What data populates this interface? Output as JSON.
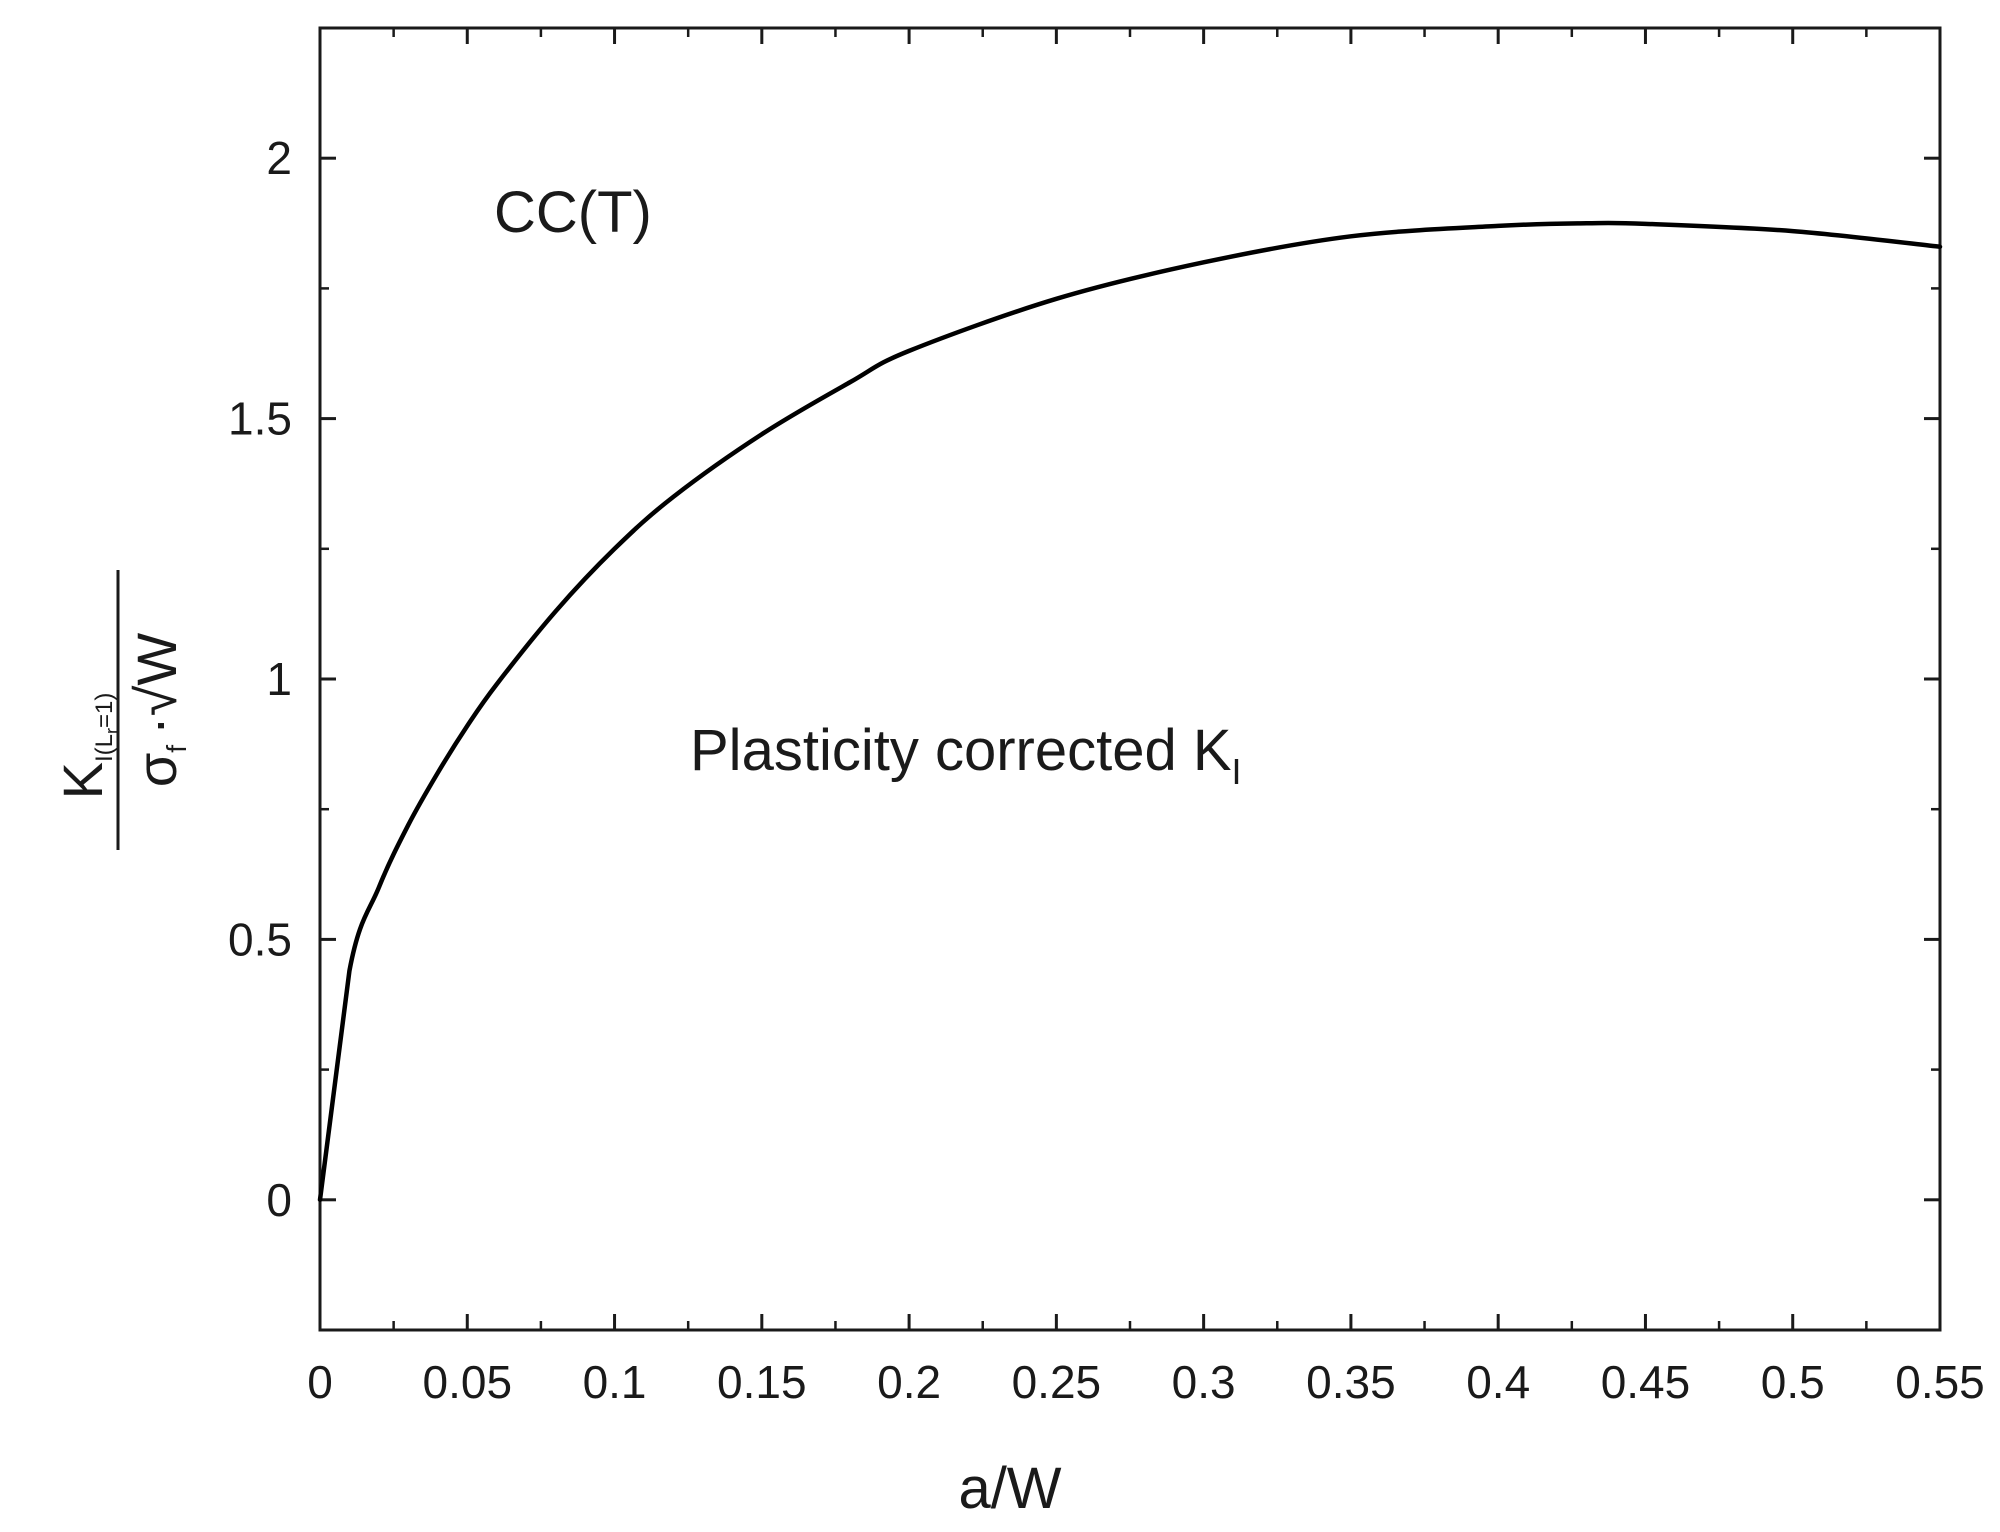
{
  "chart_data": {
    "type": "line",
    "title": "",
    "xlabel": "a/W",
    "ylabel": {
      "numerator_base": "K",
      "numerator_subscript": "I(L",
      "numerator_sub_sub": "r",
      "numerator_sub_tail": "=1)",
      "denominator_sigma": "σ",
      "denominator_sigma_sub": "f",
      "denominator_rest": "·",
      "denominator_root": "√",
      "denominator_var": "W"
    },
    "xlim": [
      0,
      0.55
    ],
    "ylim": [
      -0.25,
      2.25
    ],
    "x_ticks": [
      0,
      0.05,
      0.1,
      0.15,
      0.2,
      0.25,
      0.3,
      0.35,
      0.4,
      0.45,
      0.5,
      0.55
    ],
    "x_tick_labels": [
      "0",
      "0.05",
      "0.1",
      "0.15",
      "0.2",
      "0.25",
      "0.3",
      "0.35",
      "0.4",
      "0.45",
      "0.5",
      "0.55"
    ],
    "y_ticks": [
      0,
      0.5,
      1,
      1.5,
      2
    ],
    "y_tick_labels": [
      "0",
      "0.5",
      "1",
      "1.5",
      "2"
    ],
    "grid": false,
    "annotations": [
      {
        "text": "CC(T)",
        "name": "annotation-cct"
      },
      {
        "text": "Plasticity corrected K",
        "subscript": "I",
        "name": "annotation-plasticity"
      }
    ],
    "series": [
      {
        "name": "Plasticity corrected K_I",
        "color": "#000000",
        "x": [
          0,
          0.01,
          0.02,
          0.03,
          0.04,
          0.05,
          0.06,
          0.08,
          0.1,
          0.12,
          0.15,
          0.18,
          0.2,
          0.25,
          0.3,
          0.35,
          0.4,
          0.43,
          0.45,
          0.5,
          0.55
        ],
        "y": [
          0,
          0.44,
          0.6,
          0.72,
          0.82,
          0.91,
          0.99,
          1.13,
          1.25,
          1.35,
          1.47,
          1.57,
          1.63,
          1.73,
          1.8,
          1.85,
          1.87,
          1.875,
          1.874,
          1.86,
          1.83
        ]
      }
    ]
  }
}
